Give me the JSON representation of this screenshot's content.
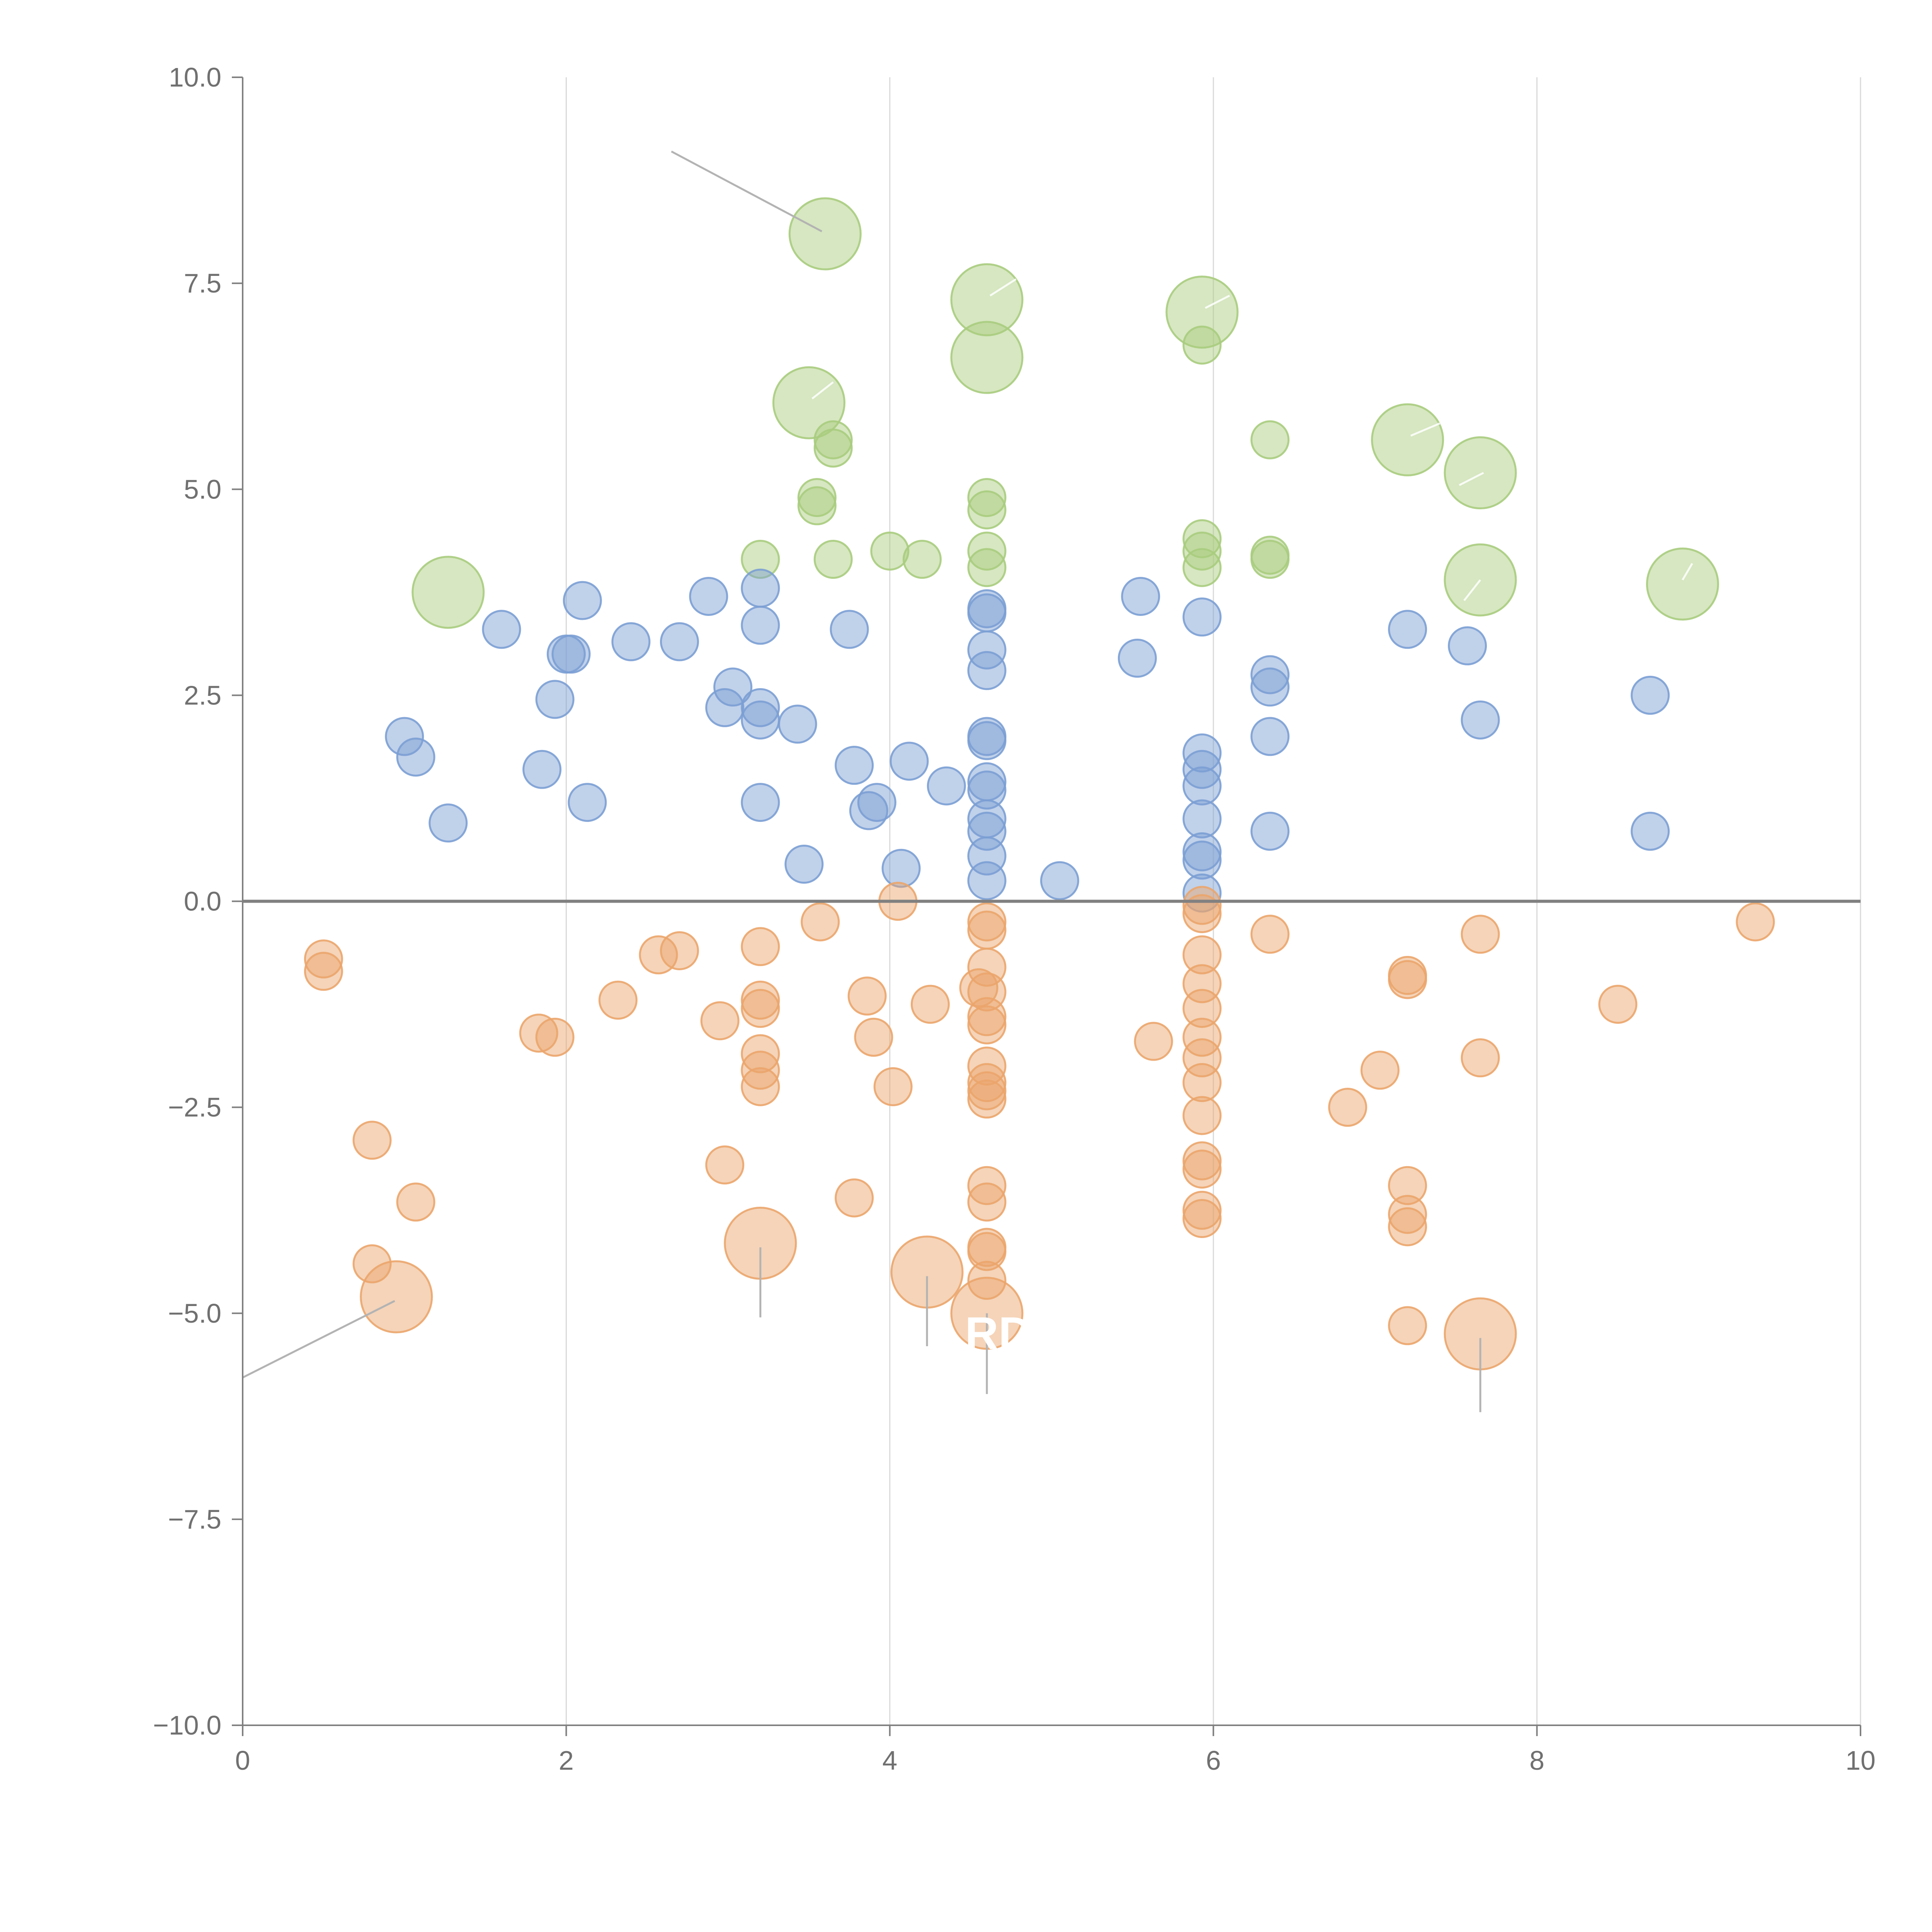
{
  "chart_data": {
    "type": "scatter",
    "title": "",
    "xlabel": "",
    "ylabel": "",
    "xlim": [
      0,
      10
    ],
    "ylim": [
      -10,
      10
    ],
    "grid": "vertical",
    "x_ticks": [
      "0",
      "2",
      "4",
      "6",
      "8",
      "10"
    ],
    "x_tick_values": [
      0,
      2,
      4,
      6,
      8,
      10
    ],
    "y_ticks": [
      "10.0",
      "7.5",
      "5.0",
      "2.5",
      "0.0",
      "−2.5",
      "−5.0",
      "−7.5",
      "−10.0"
    ],
    "y_tick_values": [
      10,
      7.5,
      5,
      2.5,
      0,
      -2.5,
      -5,
      -7.5,
      -10
    ],
    "zero_line": 0,
    "annotation_text": "RD",
    "colors": {
      "green": "#a9cc7e",
      "blue": "#7b9fd4",
      "orange": "#eba56c",
      "axis": "#808080",
      "grid": "#d9d9d9"
    },
    "series": [
      {
        "name": "green",
        "color": "#a9cc7e",
        "points": [
          [
            3.6,
            8.1,
            3
          ],
          [
            4.6,
            7.3,
            3
          ],
          [
            4.6,
            6.6,
            3
          ],
          [
            5.93,
            7.15,
            3
          ],
          [
            5.93,
            6.75,
            1
          ],
          [
            3.5,
            6.05,
            3
          ],
          [
            3.65,
            5.6,
            1
          ],
          [
            3.65,
            5.5,
            1
          ],
          [
            6.35,
            5.6,
            1
          ],
          [
            7.2,
            5.6,
            3
          ],
          [
            7.65,
            5.2,
            3
          ],
          [
            3.55,
            4.9,
            1
          ],
          [
            3.55,
            4.8,
            1
          ],
          [
            4.6,
            4.9,
            1
          ],
          [
            4.6,
            4.75,
            1
          ],
          [
            3.2,
            4.15,
            1
          ],
          [
            3.65,
            4.15,
            1
          ],
          [
            4.0,
            4.25,
            1
          ],
          [
            4.2,
            4.15,
            1
          ],
          [
            4.6,
            4.25,
            1
          ],
          [
            4.6,
            4.05,
            1
          ],
          [
            5.93,
            4.4,
            1
          ],
          [
            5.93,
            4.25,
            1
          ],
          [
            5.93,
            4.05,
            1
          ],
          [
            6.35,
            4.2,
            1
          ],
          [
            6.35,
            4.15,
            1
          ],
          [
            1.27,
            3.75,
            3
          ],
          [
            7.65,
            3.9,
            3
          ],
          [
            8.9,
            3.85,
            3
          ]
        ]
      },
      {
        "name": "blue",
        "color": "#7b9fd4",
        "points": [
          [
            1.6,
            3.3,
            1
          ],
          [
            2.0,
            3.0,
            1
          ],
          [
            2.03,
            3.0,
            1
          ],
          [
            2.1,
            3.65,
            1
          ],
          [
            2.4,
            3.15,
            1
          ],
          [
            2.7,
            3.15,
            1
          ],
          [
            2.88,
            3.7,
            1
          ],
          [
            3.2,
            3.8,
            1
          ],
          [
            3.2,
            3.35,
            1
          ],
          [
            3.75,
            3.3,
            1
          ],
          [
            4.6,
            3.55,
            1
          ],
          [
            4.6,
            3.5,
            1
          ],
          [
            4.6,
            3.05,
            1
          ],
          [
            4.6,
            2.8,
            1
          ],
          [
            5.55,
            3.7,
            1
          ],
          [
            5.93,
            3.45,
            1
          ],
          [
            5.53,
            2.95,
            1
          ],
          [
            7.2,
            3.3,
            1
          ],
          [
            7.57,
            3.1,
            1
          ],
          [
            8.7,
            2.5,
            1
          ],
          [
            6.35,
            2.75,
            1
          ],
          [
            6.35,
            2.6,
            1
          ],
          [
            6.35,
            2.0,
            1
          ],
          [
            7.65,
            2.2,
            1
          ],
          [
            1.0,
            2.0,
            1
          ],
          [
            1.07,
            1.75,
            1
          ],
          [
            1.93,
            2.45,
            1
          ],
          [
            3.03,
            2.6,
            1
          ],
          [
            2.98,
            2.35,
            1
          ],
          [
            3.2,
            2.35,
            1
          ],
          [
            3.2,
            2.2,
            1
          ],
          [
            3.43,
            2.15,
            1
          ],
          [
            4.6,
            2.0,
            1
          ],
          [
            4.6,
            1.95,
            1
          ],
          [
            1.85,
            1.6,
            1
          ],
          [
            3.78,
            1.65,
            1
          ],
          [
            4.12,
            1.7,
            1
          ],
          [
            4.35,
            1.4,
            1
          ],
          [
            4.6,
            1.45,
            1
          ],
          [
            4.6,
            1.35,
            1
          ],
          [
            5.93,
            1.8,
            1
          ],
          [
            5.93,
            1.6,
            1
          ],
          [
            5.93,
            1.4,
            1
          ],
          [
            2.13,
            1.2,
            1
          ],
          [
            3.2,
            1.2,
            1
          ],
          [
            3.92,
            1.2,
            1
          ],
          [
            3.87,
            1.1,
            1
          ],
          [
            4.6,
            1.0,
            1
          ],
          [
            4.6,
            0.85,
            1
          ],
          [
            5.93,
            1.0,
            1
          ],
          [
            1.27,
            0.95,
            1
          ],
          [
            6.35,
            0.85,
            1
          ],
          [
            8.7,
            0.85,
            1
          ],
          [
            3.47,
            0.45,
            1
          ],
          [
            4.07,
            0.4,
            1
          ],
          [
            4.6,
            0.55,
            1
          ],
          [
            4.6,
            0.25,
            1
          ],
          [
            5.05,
            0.25,
            1
          ],
          [
            5.93,
            0.6,
            1
          ],
          [
            5.93,
            0.5,
            1
          ],
          [
            5.93,
            0.1,
            1
          ]
        ]
      },
      {
        "name": "orange",
        "color": "#eba56c",
        "points": [
          [
            0.5,
            -0.7,
            1
          ],
          [
            0.5,
            -0.85,
            1
          ],
          [
            2.57,
            -0.65,
            1
          ],
          [
            2.7,
            -0.6,
            1
          ],
          [
            3.2,
            -0.55,
            1
          ],
          [
            3.57,
            -0.25,
            1
          ],
          [
            4.05,
            0.0,
            1
          ],
          [
            4.6,
            -0.25,
            1
          ],
          [
            4.6,
            -0.35,
            1
          ],
          [
            5.93,
            -0.05,
            1
          ],
          [
            5.93,
            -0.15,
            1
          ],
          [
            6.35,
            -0.4,
            1
          ],
          [
            7.65,
            -0.4,
            1
          ],
          [
            9.35,
            -0.25,
            1
          ],
          [
            4.6,
            -0.8,
            1
          ],
          [
            5.93,
            -0.65,
            1
          ],
          [
            7.2,
            -0.9,
            1
          ],
          [
            7.2,
            -0.95,
            1
          ],
          [
            2.32,
            -1.2,
            1
          ],
          [
            3.2,
            -1.2,
            1
          ],
          [
            3.2,
            -1.3,
            1
          ],
          [
            3.86,
            -1.15,
            1
          ],
          [
            4.25,
            -1.25,
            1
          ],
          [
            4.55,
            -1.05,
            1
          ],
          [
            4.6,
            -1.1,
            1
          ],
          [
            4.6,
            -1.4,
            1
          ],
          [
            4.6,
            -1.5,
            1
          ],
          [
            5.93,
            -1.0,
            1
          ],
          [
            5.93,
            -1.3,
            1
          ],
          [
            8.5,
            -1.25,
            1
          ],
          [
            1.83,
            -1.6,
            1
          ],
          [
            1.93,
            -1.65,
            1
          ],
          [
            2.95,
            -1.45,
            1
          ],
          [
            3.9,
            -1.65,
            1
          ],
          [
            5.63,
            -1.7,
            1
          ],
          [
            5.93,
            -1.65,
            1
          ],
          [
            5.93,
            -1.9,
            1
          ],
          [
            3.2,
            -1.85,
            1
          ],
          [
            3.2,
            -2.05,
            1
          ],
          [
            3.2,
            -2.25,
            1
          ],
          [
            4.02,
            -2.25,
            1
          ],
          [
            4.6,
            -2.0,
            1
          ],
          [
            4.6,
            -2.2,
            1
          ],
          [
            4.6,
            -2.3,
            1
          ],
          [
            4.6,
            -2.4,
            1
          ],
          [
            5.93,
            -2.2,
            1
          ],
          [
            7.03,
            -2.05,
            1
          ],
          [
            7.65,
            -1.9,
            1
          ],
          [
            0.8,
            -2.9,
            1
          ],
          [
            6.83,
            -2.5,
            1
          ],
          [
            5.93,
            -2.6,
            1
          ],
          [
            2.98,
            -3.2,
            1
          ],
          [
            5.93,
            -3.15,
            1
          ],
          [
            5.93,
            -3.25,
            1
          ],
          [
            4.6,
            -3.45,
            1
          ],
          [
            1.07,
            -3.65,
            1
          ],
          [
            3.78,
            -3.6,
            1
          ],
          [
            4.6,
            -3.65,
            1
          ],
          [
            7.2,
            -3.45,
            1
          ],
          [
            5.93,
            -3.75,
            1
          ],
          [
            5.93,
            -3.85,
            1
          ],
          [
            7.2,
            -3.8,
            1
          ],
          [
            7.2,
            -3.95,
            1
          ],
          [
            3.2,
            -4.15,
            3
          ],
          [
            4.6,
            -4.2,
            1
          ],
          [
            4.6,
            -4.25,
            1
          ],
          [
            0.8,
            -4.4,
            1
          ],
          [
            4.23,
            -4.5,
            3
          ],
          [
            4.6,
            -4.6,
            1
          ],
          [
            0.95,
            -4.8,
            3
          ],
          [
            4.6,
            -5.0,
            3
          ],
          [
            7.2,
            -5.15,
            1
          ],
          [
            7.65,
            -5.25,
            3
          ]
        ]
      }
    ],
    "leaders": [
      {
        "color": "grey",
        "from": [
          2.65,
          9.1
        ],
        "to": [
          3.58,
          8.13
        ]
      },
      {
        "color": "grey",
        "from": [
          0.94,
          -4.85
        ],
        "to": [
          0.0,
          -5.78
        ]
      },
      {
        "color": "grey",
        "from": [
          3.2,
          -4.2
        ],
        "to": [
          3.2,
          -5.05
        ]
      },
      {
        "color": "grey",
        "from": [
          4.23,
          -4.55
        ],
        "to": [
          4.23,
          -5.4
        ]
      },
      {
        "color": "grey",
        "from": [
          4.6,
          -5.0
        ],
        "to": [
          4.6,
          -5.98
        ]
      },
      {
        "color": "grey",
        "from": [
          7.65,
          -5.3
        ],
        "to": [
          7.65,
          -6.2
        ]
      },
      {
        "color": "white",
        "from": [
          4.62,
          7.35
        ],
        "to": [
          4.78,
          7.55
        ]
      },
      {
        "color": "white",
        "from": [
          5.95,
          7.2
        ],
        "to": [
          6.1,
          7.35
        ]
      },
      {
        "color": "white",
        "from": [
          3.52,
          6.1
        ],
        "to": [
          3.65,
          6.3
        ]
      },
      {
        "color": "white",
        "from": [
          7.22,
          5.65
        ],
        "to": [
          7.4,
          5.8
        ]
      },
      {
        "color": "white",
        "from": [
          7.52,
          5.05
        ],
        "to": [
          7.67,
          5.2
        ]
      },
      {
        "color": "white",
        "from": [
          7.55,
          3.65
        ],
        "to": [
          7.65,
          3.9
        ]
      },
      {
        "color": "white",
        "from": [
          8.9,
          3.9
        ],
        "to": [
          8.96,
          4.1
        ]
      }
    ],
    "annotation_position": [
      4.6,
      -5.25
    ]
  }
}
